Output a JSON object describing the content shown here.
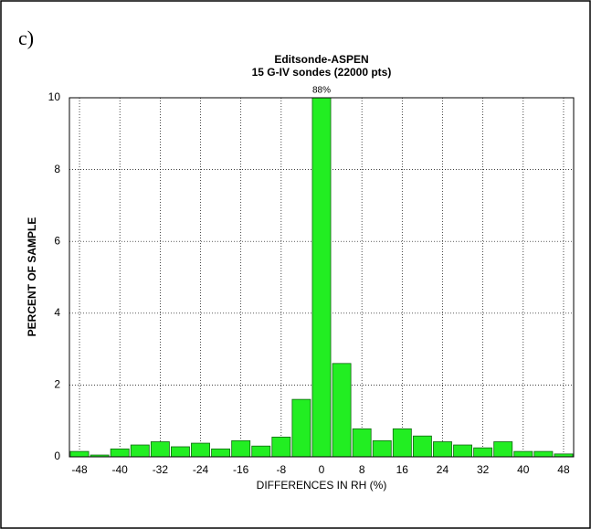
{
  "panel_label": "c)",
  "chart_data": {
    "type": "histogram",
    "title": "Editsonde-ASPEN",
    "subtitle": "15 G-IV sondes (22000 pts)",
    "x_label": "DIFFERENCES IN RH (%)",
    "y_label": "PERCENT OF SAMPLE",
    "bins": [
      -50,
      -46,
      -42,
      -38,
      -34,
      -30,
      -26,
      -22,
      -18,
      -14,
      -10,
      -6,
      -2,
      2,
      6,
      10,
      14,
      18,
      22,
      26,
      30,
      34,
      38,
      42,
      46,
      50
    ],
    "values": [
      0.15,
      0.05,
      0.22,
      0.33,
      0.42,
      0.28,
      0.38,
      0.22,
      0.45,
      0.3,
      0.55,
      1.6,
      88,
      2.6,
      0.78,
      0.45,
      0.78,
      0.58,
      0.42,
      0.33,
      0.25,
      0.42,
      0.15,
      0.15,
      0.08
    ],
    "value_labels": [
      null,
      null,
      null,
      null,
      null,
      null,
      null,
      null,
      null,
      null,
      null,
      null,
      "88%",
      null,
      null,
      null,
      null,
      null,
      null,
      null,
      null,
      null,
      null,
      null,
      null
    ],
    "color": "#22ee22",
    "xlim": [
      -50,
      50
    ],
    "xticks": [
      -48,
      -40,
      -32,
      -24,
      -16,
      -8,
      0,
      8,
      16,
      24,
      32,
      40,
      48
    ],
    "ylim": [
      0,
      10
    ],
    "yticks": [
      0,
      2,
      4,
      6,
      8,
      10
    ],
    "grid": true
  }
}
